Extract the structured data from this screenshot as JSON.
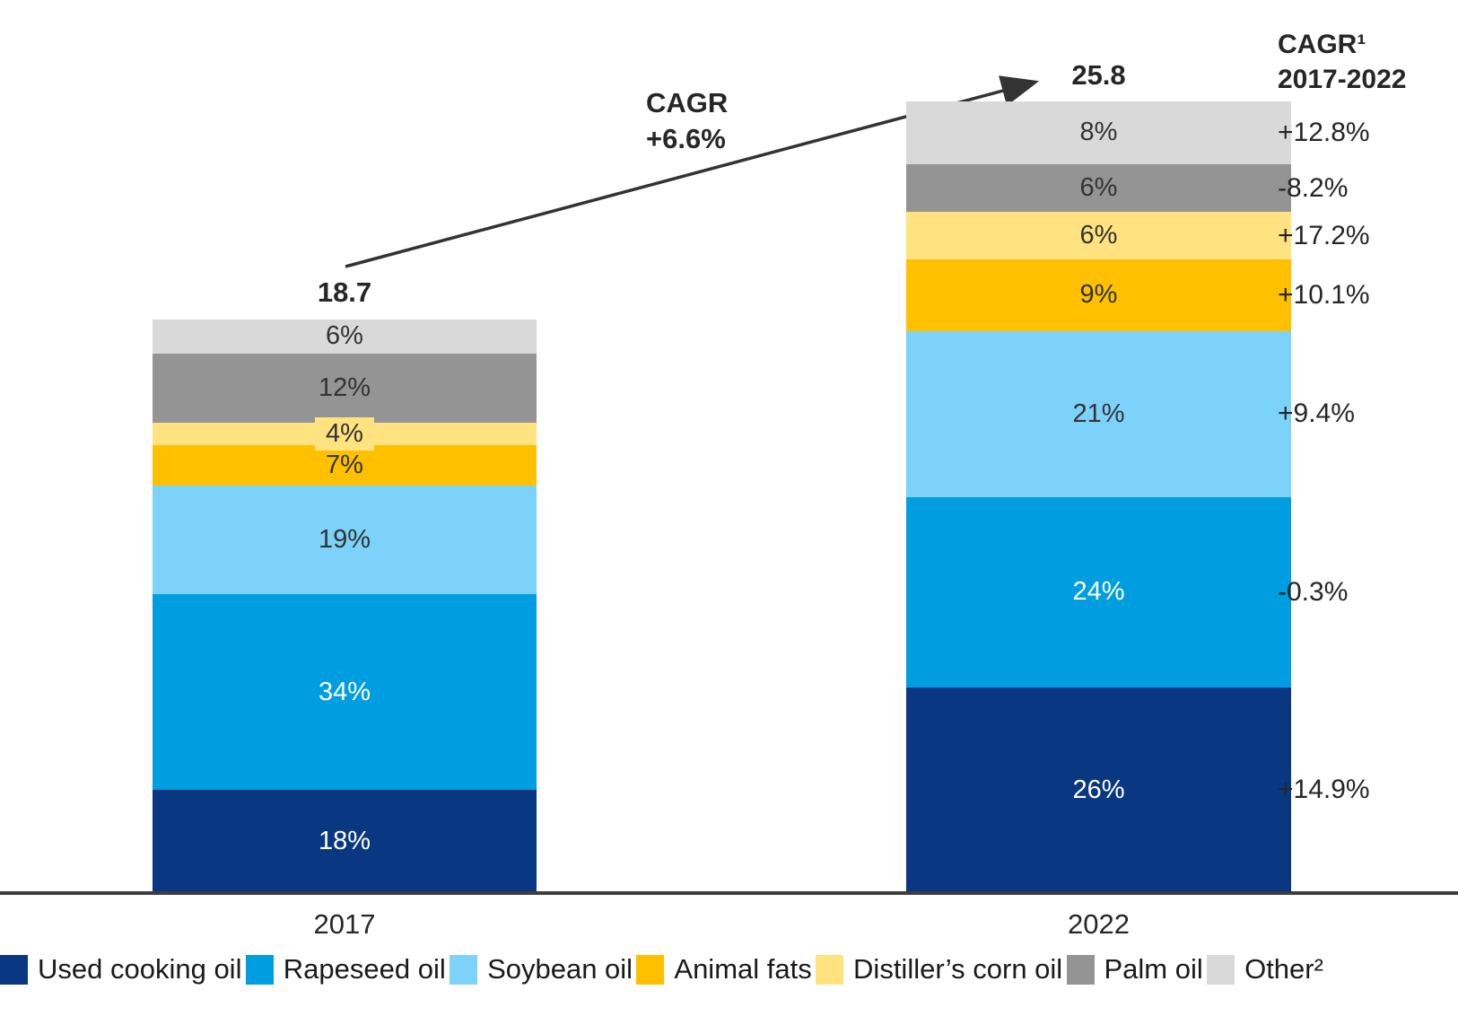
{
  "chart_data": {
    "type": "bar",
    "variant": "stacked-100pct-with-totals",
    "title": "",
    "categories": [
      "2017",
      "2022"
    ],
    "totals": [
      "18.7",
      "25.8"
    ],
    "growth_annotation": {
      "line1": "CAGR",
      "line2": "+6.6%"
    },
    "cagr_column": {
      "header_line1": "CAGR¹",
      "header_line2": "2017-2022"
    },
    "legend_position": "bottom",
    "grid": false,
    "series": [
      {
        "name": "Used cooking oil",
        "values_pct": [
          18,
          26
        ],
        "cagr": "+14.9%",
        "color": "#0A3782",
        "label_color": "#FFFFFF"
      },
      {
        "name": "Rapeseed oil",
        "values_pct": [
          34,
          24
        ],
        "cagr": "-0.3%",
        "color": "#009EE0",
        "label_color": "#FFFFFF"
      },
      {
        "name": "Soybean oil",
        "values_pct": [
          19,
          21
        ],
        "cagr": "+9.4%",
        "color": "#7DD2FA",
        "label_color": "#333333"
      },
      {
        "name": "Animal fats",
        "values_pct": [
          7,
          9
        ],
        "cagr": "+10.1%",
        "color": "#FFC000",
        "label_color": "#333333"
      },
      {
        "name": "Distiller’s corn oil",
        "values_pct": [
          4,
          6
        ],
        "cagr": "+17.2%",
        "color": "#FFE380",
        "label_color": "#333333"
      },
      {
        "name": "Palm oil",
        "values_pct": [
          12,
          6
        ],
        "cagr": "-8.2%",
        "color": "#949494",
        "label_color": "#333333"
      },
      {
        "name": "Other²",
        "values_pct": [
          6,
          8
        ],
        "cagr": "+12.8%",
        "color": "#D9D9D9",
        "label_color": "#333333"
      }
    ],
    "arrow_color": "#333333"
  }
}
